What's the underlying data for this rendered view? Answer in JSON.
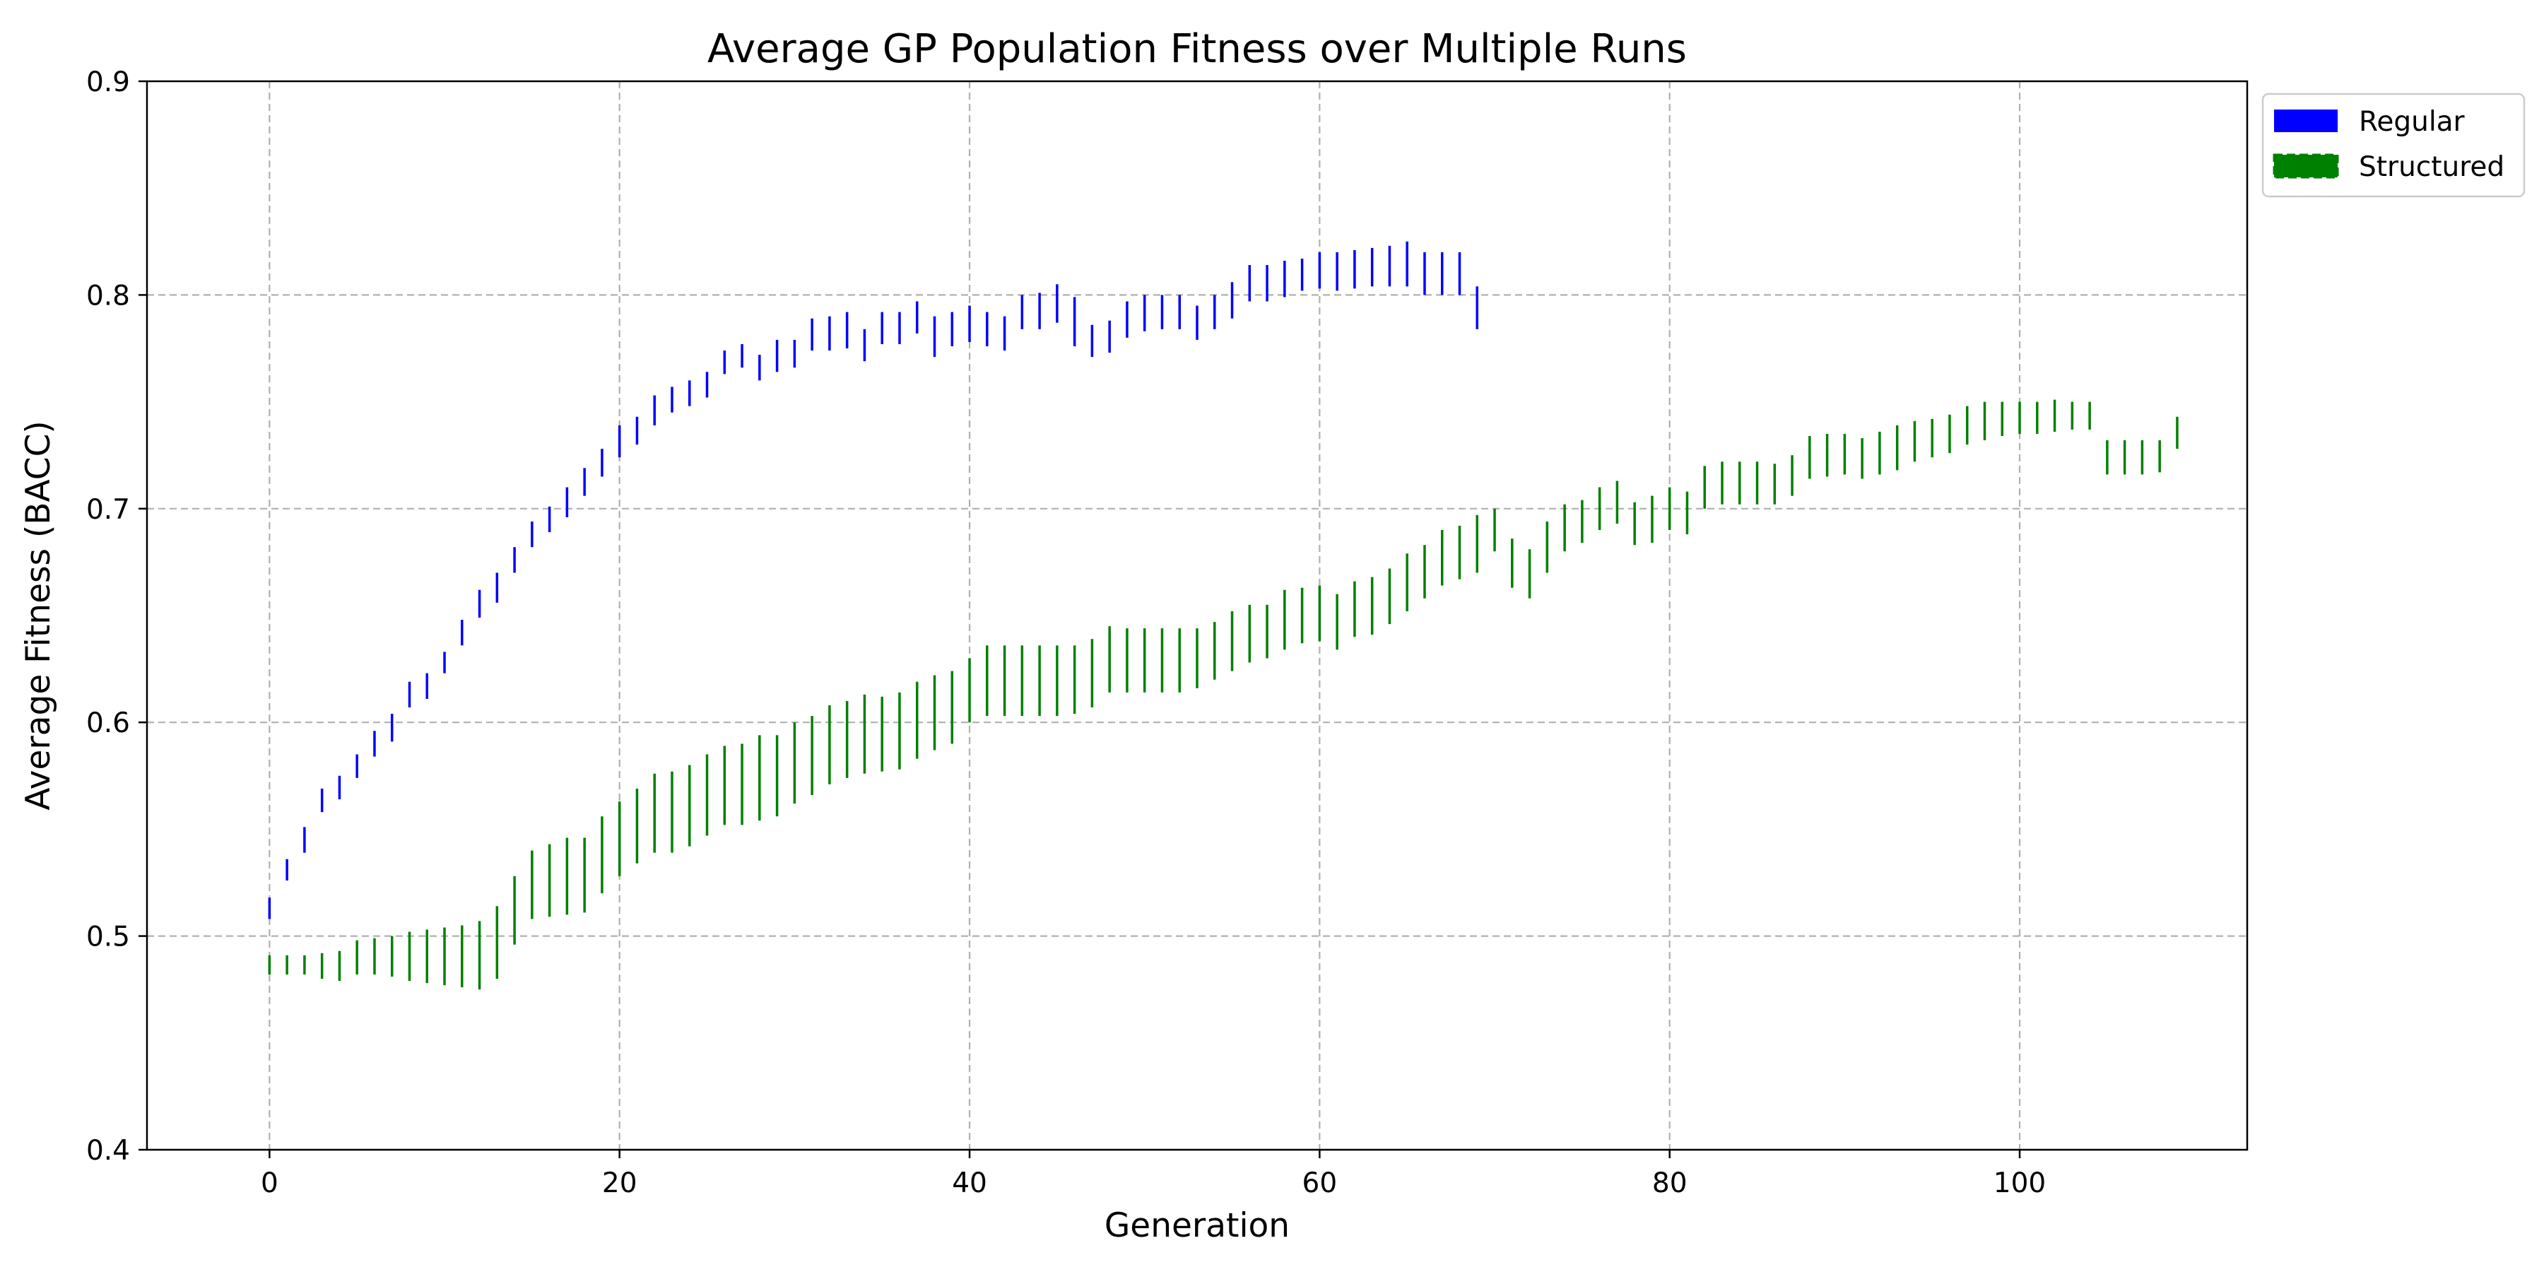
{
  "chart_data": {
    "type": "errorbar",
    "title": "Average GP Population Fitness over Multiple Runs",
    "xlabel": "Generation",
    "ylabel": "Average Fitness (BACC)",
    "xlim": [
      -7,
      113
    ],
    "ylim": [
      0.4,
      0.9
    ],
    "xticks": [
      0,
      20,
      40,
      60,
      80,
      100
    ],
    "yticks": [
      0.4,
      0.5,
      0.6,
      0.7,
      0.8,
      0.9
    ],
    "xtick_labels": [
      "0",
      "20",
      "40",
      "60",
      "80",
      "100"
    ],
    "ytick_labels": [
      "0.4",
      "0.5",
      "0.6",
      "0.7",
      "0.8",
      "0.9"
    ],
    "grid": true,
    "legend_position": "outside upper right",
    "series": [
      {
        "name": "Regular",
        "color": "#0000ff",
        "x": [
          0,
          1,
          2,
          3,
          4,
          5,
          6,
          7,
          8,
          9,
          10,
          11,
          12,
          13,
          14,
          15,
          16,
          17,
          18,
          19,
          20,
          21,
          22,
          23,
          24,
          25,
          26,
          27,
          28,
          29,
          30,
          31,
          32,
          33,
          34,
          35,
          36,
          37,
          38,
          39,
          40,
          41,
          42,
          43,
          44,
          45,
          46,
          47,
          48,
          49,
          50,
          51,
          52,
          53,
          54,
          55,
          56,
          57,
          58,
          59,
          60,
          61,
          62,
          63,
          64,
          65,
          66,
          67,
          68,
          69
        ],
        "low": [
          0.508,
          0.526,
          0.539,
          0.558,
          0.564,
          0.574,
          0.584,
          0.591,
          0.607,
          0.611,
          0.623,
          0.636,
          0.649,
          0.656,
          0.67,
          0.682,
          0.689,
          0.696,
          0.706,
          0.715,
          0.724,
          0.73,
          0.739,
          0.745,
          0.748,
          0.752,
          0.763,
          0.766,
          0.76,
          0.764,
          0.766,
          0.774,
          0.774,
          0.775,
          0.769,
          0.777,
          0.777,
          0.782,
          0.771,
          0.776,
          0.778,
          0.776,
          0.774,
          0.784,
          0.784,
          0.787,
          0.776,
          0.771,
          0.773,
          0.78,
          0.783,
          0.784,
          0.784,
          0.779,
          0.784,
          0.789,
          0.797,
          0.797,
          0.799,
          0.802,
          0.803,
          0.802,
          0.803,
          0.804,
          0.804,
          0.804,
          0.8,
          0.8,
          0.8,
          0.784
        ],
        "high": [
          0.518,
          0.536,
          0.551,
          0.569,
          0.575,
          0.585,
          0.596,
          0.604,
          0.619,
          0.623,
          0.633,
          0.648,
          0.662,
          0.67,
          0.682,
          0.694,
          0.701,
          0.71,
          0.719,
          0.728,
          0.739,
          0.743,
          0.753,
          0.757,
          0.76,
          0.764,
          0.774,
          0.777,
          0.772,
          0.779,
          0.779,
          0.789,
          0.79,
          0.792,
          0.784,
          0.792,
          0.792,
          0.797,
          0.79,
          0.792,
          0.795,
          0.792,
          0.79,
          0.8,
          0.801,
          0.805,
          0.799,
          0.786,
          0.788,
          0.797,
          0.8,
          0.8,
          0.8,
          0.795,
          0.8,
          0.806,
          0.814,
          0.814,
          0.816,
          0.817,
          0.82,
          0.82,
          0.821,
          0.822,
          0.823,
          0.825,
          0.82,
          0.82,
          0.82,
          0.804
        ]
      },
      {
        "name": "Structured",
        "color": "#008000",
        "x": [
          0,
          1,
          2,
          3,
          4,
          5,
          6,
          7,
          8,
          9,
          10,
          11,
          12,
          13,
          14,
          15,
          16,
          17,
          18,
          19,
          20,
          21,
          22,
          23,
          24,
          25,
          26,
          27,
          28,
          29,
          30,
          31,
          32,
          33,
          34,
          35,
          36,
          37,
          38,
          39,
          40,
          41,
          42,
          43,
          44,
          45,
          46,
          47,
          48,
          49,
          50,
          51,
          52,
          53,
          54,
          55,
          56,
          57,
          58,
          59,
          60,
          61,
          62,
          63,
          64,
          65,
          66,
          67,
          68,
          69,
          70,
          71,
          72,
          73,
          74,
          75,
          76,
          77,
          78,
          79,
          80,
          81,
          82,
          83,
          84,
          85,
          86,
          87,
          88,
          89,
          90,
          91,
          92,
          93,
          94,
          95,
          96,
          97,
          98,
          99,
          100,
          101,
          102,
          103,
          104,
          105,
          106,
          107,
          108,
          109
        ],
        "low": [
          0.482,
          0.482,
          0.482,
          0.48,
          0.479,
          0.482,
          0.482,
          0.481,
          0.479,
          0.478,
          0.477,
          0.476,
          0.475,
          0.48,
          0.496,
          0.508,
          0.509,
          0.51,
          0.511,
          0.52,
          0.528,
          0.534,
          0.539,
          0.539,
          0.542,
          0.547,
          0.552,
          0.552,
          0.554,
          0.556,
          0.562,
          0.566,
          0.571,
          0.574,
          0.576,
          0.577,
          0.578,
          0.583,
          0.587,
          0.59,
          0.6,
          0.603,
          0.603,
          0.603,
          0.603,
          0.603,
          0.604,
          0.607,
          0.614,
          0.614,
          0.614,
          0.614,
          0.614,
          0.616,
          0.62,
          0.624,
          0.628,
          0.63,
          0.634,
          0.637,
          0.638,
          0.634,
          0.64,
          0.641,
          0.646,
          0.652,
          0.658,
          0.664,
          0.667,
          0.67,
          0.68,
          0.663,
          0.658,
          0.67,
          0.68,
          0.684,
          0.69,
          0.693,
          0.683,
          0.684,
          0.69,
          0.688,
          0.7,
          0.702,
          0.702,
          0.702,
          0.702,
          0.706,
          0.714,
          0.715,
          0.716,
          0.714,
          0.716,
          0.718,
          0.722,
          0.724,
          0.726,
          0.73,
          0.732,
          0.734,
          0.735,
          0.735,
          0.736,
          0.737,
          0.737,
          0.716,
          0.716,
          0.716,
          0.717,
          0.728
        ],
        "high": [
          0.491,
          0.491,
          0.491,
          0.492,
          0.493,
          0.498,
          0.499,
          0.5,
          0.502,
          0.503,
          0.504,
          0.505,
          0.507,
          0.514,
          0.528,
          0.54,
          0.543,
          0.546,
          0.546,
          0.556,
          0.563,
          0.569,
          0.576,
          0.577,
          0.58,
          0.585,
          0.589,
          0.59,
          0.594,
          0.594,
          0.6,
          0.603,
          0.608,
          0.61,
          0.613,
          0.612,
          0.614,
          0.619,
          0.622,
          0.624,
          0.63,
          0.636,
          0.636,
          0.636,
          0.636,
          0.636,
          0.636,
          0.639,
          0.645,
          0.644,
          0.644,
          0.644,
          0.644,
          0.644,
          0.647,
          0.652,
          0.655,
          0.655,
          0.662,
          0.663,
          0.664,
          0.66,
          0.666,
          0.668,
          0.672,
          0.679,
          0.683,
          0.69,
          0.692,
          0.697,
          0.7,
          0.686,
          0.681,
          0.694,
          0.702,
          0.704,
          0.71,
          0.713,
          0.703,
          0.706,
          0.71,
          0.708,
          0.72,
          0.722,
          0.722,
          0.722,
          0.721,
          0.725,
          0.734,
          0.735,
          0.735,
          0.733,
          0.736,
          0.739,
          0.741,
          0.742,
          0.744,
          0.748,
          0.75,
          0.75,
          0.75,
          0.75,
          0.751,
          0.75,
          0.75,
          0.732,
          0.732,
          0.732,
          0.732,
          0.743
        ]
      }
    ]
  }
}
